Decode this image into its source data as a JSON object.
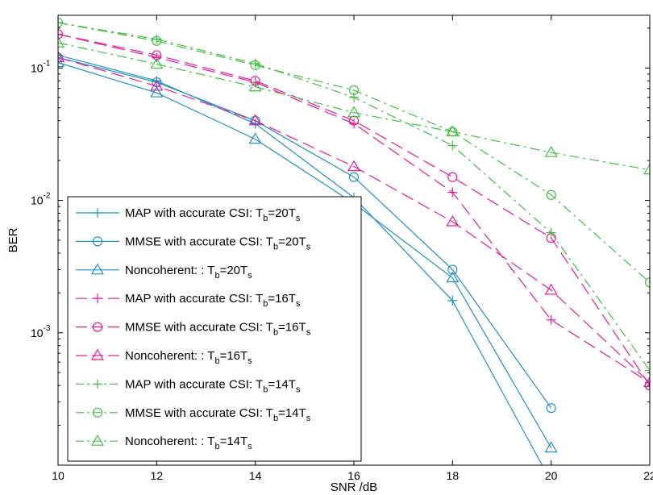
{
  "chart_data": {
    "type": "line",
    "title": "",
    "xlabel": "SNR /dB",
    "ylabel": "BER",
    "x_scale": "linear",
    "y_scale": "log",
    "xlim": [
      10,
      22
    ],
    "ylim": [
      0.0001,
      0.25
    ],
    "xticks": [
      10,
      12,
      14,
      16,
      18,
      20,
      22
    ],
    "xtick_labels": [
      "10",
      "12",
      "14",
      "16",
      "18",
      "20",
      "22"
    ],
    "yticks": [
      {
        "value": 0.1,
        "mant": "10",
        "exp": "-1"
      },
      {
        "value": 0.01,
        "mant": "10",
        "exp": "-2"
      },
      {
        "value": 0.001,
        "mant": "10",
        "exp": "-3"
      }
    ],
    "grid": false,
    "legend_position": "bottom-left",
    "colors": {
      "tb20": "#1e90c8",
      "tb16": "#e6199a",
      "tb14": "#3fbf3f"
    },
    "series": [
      {
        "name": "MAP with accurate CSI: T_b=20T_s",
        "legend": {
          "base": "MAP with accurate CSI: T",
          "sub1": "b",
          "mid": "=20T",
          "sub2": "s"
        },
        "color": "#1e90c8",
        "marker": "plus",
        "dash": "solid",
        "x": [
          10,
          12,
          14,
          16,
          18,
          20
        ],
        "y": [
          0.125,
          0.08,
          0.038,
          0.0105,
          0.00175,
          7.5e-05
        ]
      },
      {
        "name": "MMSE with accurate CSI: T_b=20T_s",
        "legend": {
          "base": "MMSE with accurate CSI: T",
          "sub1": "b",
          "mid": "=20T",
          "sub2": "s"
        },
        "color": "#1e90c8",
        "marker": "circle",
        "dash": "solid",
        "x": [
          10,
          12,
          14,
          16,
          18,
          20
        ],
        "y": [
          0.12,
          0.078,
          0.04,
          0.015,
          0.003,
          0.00027
        ]
      },
      {
        "name": "Noncoherent: : T_b=20T_s",
        "legend": {
          "base": "Noncoherent: : T",
          "sub1": "b",
          "mid": "=20T",
          "sub2": "s"
        },
        "color": "#1e90c8",
        "marker": "triangle",
        "dash": "solid",
        "x": [
          10,
          12,
          14,
          16,
          18,
          20
        ],
        "y": [
          0.11,
          0.065,
          0.029,
          0.0095,
          0.0026,
          0.000135
        ]
      },
      {
        "name": "MAP with accurate CSI: T_b=16T_s",
        "legend": {
          "base": "MAP with accurate CSI: T",
          "sub1": "b",
          "mid": "=16T",
          "sub2": "s"
        },
        "color": "#e6199a",
        "marker": "plus",
        "dash": "long",
        "x": [
          10,
          12,
          14,
          16,
          18,
          20,
          22
        ],
        "y": [
          0.18,
          0.12,
          0.078,
          0.038,
          0.0115,
          0.00125,
          0.00042
        ]
      },
      {
        "name": "MMSE with accurate CSI: T_b=16T_s",
        "legend": {
          "base": "MMSE with accurate CSI: T",
          "sub1": "b",
          "mid": "=16T",
          "sub2": "s"
        },
        "color": "#e6199a",
        "marker": "circle",
        "dash": "long",
        "x": [
          10,
          12,
          14,
          16,
          18,
          20,
          22
        ],
        "y": [
          0.18,
          0.125,
          0.08,
          0.04,
          0.015,
          0.0052,
          0.0004
        ]
      },
      {
        "name": "Noncoherent: : T_b=16T_s",
        "legend": {
          "base": "Noncoherent: : T",
          "sub1": "b",
          "mid": "=16T",
          "sub2": "s"
        },
        "color": "#e6199a",
        "marker": "triangle",
        "dash": "long",
        "x": [
          10,
          12,
          14,
          16,
          18,
          20,
          22
        ],
        "y": [
          0.12,
          0.073,
          0.04,
          0.018,
          0.0069,
          0.0021,
          0.00042
        ]
      },
      {
        "name": "MAP with accurate CSI: T_b=14T_s",
        "legend": {
          "base": "MAP with accurate CSI: T",
          "sub1": "b",
          "mid": "=14T",
          "sub2": "s"
        },
        "color": "#3fbf3f",
        "marker": "plus",
        "dash": "dashdot",
        "x": [
          10,
          12,
          14,
          16,
          18,
          20,
          22
        ],
        "y": [
          0.22,
          0.165,
          0.108,
          0.06,
          0.026,
          0.0057,
          0.00052
        ]
      },
      {
        "name": "MMSE with accurate CSI: T_b=14T_s",
        "legend": {
          "base": "MMSE with accurate CSI: T",
          "sub1": "b",
          "mid": "=14T",
          "sub2": "s"
        },
        "color": "#3fbf3f",
        "marker": "circle",
        "dash": "dashdot",
        "x": [
          10,
          12,
          14,
          16,
          18,
          20,
          22
        ],
        "y": [
          0.22,
          0.16,
          0.105,
          0.068,
          0.033,
          0.011,
          0.0024
        ]
      },
      {
        "name": "Noncoherent: : T_b=14T_s",
        "legend": {
          "base": "Noncoherent: : T",
          "sub1": "b",
          "mid": "=14T",
          "sub2": "s"
        },
        "color": "#3fbf3f",
        "marker": "triangle",
        "dash": "dashdot",
        "x": [
          10,
          12,
          14,
          16,
          18,
          20,
          22
        ],
        "y": [
          0.155,
          0.107,
          0.072,
          0.046,
          0.033,
          0.023,
          0.017
        ]
      }
    ]
  }
}
